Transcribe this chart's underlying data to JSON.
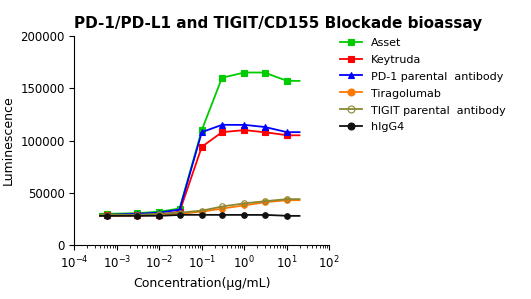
{
  "title": "PD-1/PD-L1 and TIGIT/CD155 Blockade bioassay",
  "xlabel": "Concentration(μg/mL)",
  "ylabel": "Luminescence",
  "xlim": [
    0.0001,
    100.0
  ],
  "ylim": [
    0,
    200000
  ],
  "yticks": [
    0,
    50000,
    100000,
    150000,
    200000
  ],
  "series": [
    {
      "label": "Asset",
      "color": "#00CC00",
      "marker": "s",
      "mfc": "#00CC00",
      "x": [
        0.0006,
        0.003,
        0.01,
        0.03,
        0.1,
        0.3,
        1.0,
        3.0,
        10.0
      ],
      "y": [
        30000,
        30500,
        32000,
        35000,
        110000,
        160000,
        165000,
        165000,
        157000
      ],
      "sigmoid": true
    },
    {
      "label": "Keytruda",
      "color": "#FF0000",
      "marker": "s",
      "mfc": "#FF0000",
      "x": [
        0.0006,
        0.003,
        0.01,
        0.03,
        0.1,
        0.3,
        1.0,
        3.0,
        10.0
      ],
      "y": [
        28500,
        28500,
        29000,
        32000,
        94000,
        108000,
        110000,
        108000,
        105000
      ],
      "sigmoid": true
    },
    {
      "label": "PD-1 parental  antibody",
      "color": "#0000FF",
      "marker": "^",
      "mfc": "#0000FF",
      "x": [
        0.0006,
        0.003,
        0.01,
        0.03,
        0.1,
        0.3,
        1.0,
        3.0,
        10.0
      ],
      "y": [
        29000,
        30000,
        31000,
        34000,
        108000,
        115000,
        115000,
        113000,
        108000
      ],
      "sigmoid": true
    },
    {
      "label": "Tiragolumab",
      "color": "#FF7700",
      "marker": "o",
      "mfc": "#FF7700",
      "x": [
        0.0006,
        0.003,
        0.01,
        0.03,
        0.1,
        0.3,
        1.0,
        3.0,
        10.0
      ],
      "y": [
        28000,
        28000,
        29000,
        30000,
        32000,
        35000,
        38000,
        41000,
        43000
      ],
      "sigmoid": false
    },
    {
      "label": "TIGIT parental  antibody",
      "color": "#888833",
      "marker": "o",
      "mfc": "none",
      "x": [
        0.0006,
        0.003,
        0.01,
        0.03,
        0.1,
        0.3,
        1.0,
        3.0,
        10.0
      ],
      "y": [
        29000,
        29000,
        30000,
        31000,
        33000,
        37000,
        40000,
        42000,
        44000
      ],
      "sigmoid": false
    },
    {
      "label": "hIgG4",
      "color": "#111111",
      "marker": "o",
      "mfc": "#111111",
      "x": [
        0.0006,
        0.003,
        0.01,
        0.03,
        0.1,
        0.3,
        1.0,
        3.0,
        10.0
      ],
      "y": [
        28000,
        28000,
        28000,
        29000,
        29000,
        29000,
        29000,
        29000,
        28000
      ],
      "sigmoid": false
    }
  ],
  "title_fontsize": 11,
  "axis_label_fontsize": 9,
  "tick_fontsize": 8.5,
  "legend_fontsize": 8,
  "background_color": "#ffffff"
}
